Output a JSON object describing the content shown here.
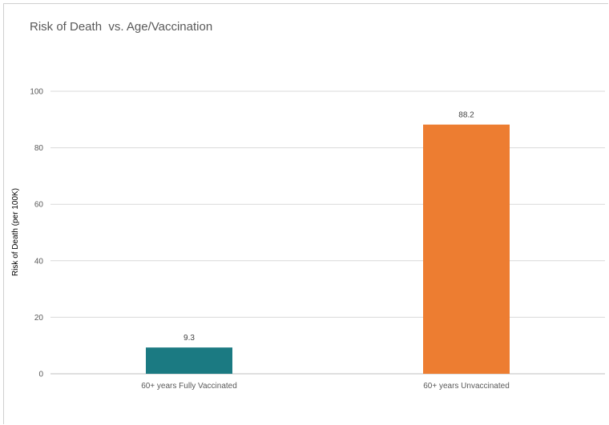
{
  "chart_data": {
    "type": "bar",
    "title": "Risk of Death  vs. Age/Vaccination",
    "xlabel": "",
    "ylabel": "Risk of Death (per 100K)",
    "categories": [
      "60+ years Fully Vaccinated",
      "60+ years Unvaccinated"
    ],
    "values": [
      9.3,
      88.2
    ],
    "data_labels": [
      "9.3",
      "88.2"
    ],
    "colors": [
      "#1b7a82",
      "#ed7d31"
    ],
    "ylim": [
      0,
      100
    ],
    "yticks": [
      0,
      20,
      40,
      60,
      80,
      100
    ],
    "ytick_labels": [
      "0",
      "20",
      "40",
      "60",
      "80",
      "100"
    ],
    "grid": true,
    "legend": "none",
    "gridline_color": "#d9d9d9"
  }
}
